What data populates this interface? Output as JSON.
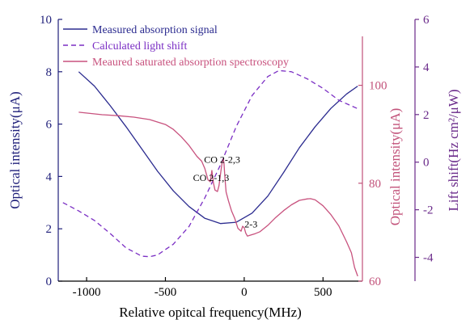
{
  "colors": {
    "axis_left": "#1f1f7a",
    "axis_right1": "#c2527a",
    "axis_right2": "#6a2a8a",
    "measured": "#2b2b8f",
    "calculated": "#7b2fc4",
    "spectroscopy": "#c8527e"
  },
  "chart_data": {
    "type": "line",
    "xlabel": "Relative opitcal frequency(MHz)",
    "xlim": [
      -1180,
      750
    ],
    "xticks": [
      -1000,
      -500,
      0,
      500
    ],
    "axes": {
      "left": {
        "label": "Optical intensity(μA)",
        "lim": [
          0,
          10
        ],
        "ticks": [
          0,
          2,
          4,
          6,
          8,
          10
        ]
      },
      "right1": {
        "label": "Optical intensity(μA)",
        "lim": [
          60,
          110
        ],
        "ticks": [
          60,
          80,
          100
        ]
      },
      "right2": {
        "label": "Lift shift(Hz cm²/μW)",
        "lim": [
          -5,
          6
        ],
        "ticks": [
          -4,
          -2,
          0,
          2,
          4,
          6
        ]
      }
    },
    "legend": {
      "position": "top-left"
    },
    "series": [
      {
        "name": "Measured absorption signal",
        "axis": "left",
        "style": "solid",
        "x": [
          -1050,
          -950,
          -850,
          -750,
          -650,
          -550,
          -450,
          -350,
          -250,
          -150,
          -50,
          50,
          150,
          250,
          350,
          450,
          550,
          650,
          720
        ],
        "y": [
          8.0,
          7.45,
          6.7,
          5.9,
          5.05,
          4.2,
          3.45,
          2.85,
          2.4,
          2.2,
          2.25,
          2.6,
          3.25,
          4.15,
          5.1,
          5.9,
          6.6,
          7.15,
          7.45
        ]
      },
      {
        "name": "Calculated light shift",
        "axis": "right2",
        "style": "dashed",
        "x": [
          -1150,
          -1050,
          -950,
          -850,
          -750,
          -650,
          -600,
          -550,
          -450,
          -350,
          -250,
          -150,
          -50,
          50,
          150,
          220,
          300,
          400,
          500,
          600,
          720
        ],
        "y": [
          -1.7,
          -2.05,
          -2.45,
          -3.0,
          -3.6,
          -3.95,
          -3.97,
          -3.9,
          -3.45,
          -2.7,
          -1.5,
          -0.1,
          1.5,
          2.8,
          3.6,
          3.85,
          3.8,
          3.5,
          3.1,
          2.6,
          2.25
        ]
      },
      {
        "name": "Meaured saturated absorption spectroscopy",
        "axis": "right1",
        "style": "solid",
        "x": [
          -1050,
          -900,
          -800,
          -700,
          -600,
          -500,
          -450,
          -400,
          -350,
          -300,
          -270,
          -250,
          -230,
          -215,
          -205,
          -195,
          -185,
          -170,
          -160,
          -150,
          -140,
          -133,
          -128,
          -122,
          -115,
          -100,
          -80,
          -60,
          -40,
          -20,
          -10,
          0,
          10,
          20,
          40,
          70,
          100,
          150,
          200,
          250,
          300,
          350,
          400,
          420,
          450,
          500,
          550,
          600,
          650,
          680,
          700,
          720
        ],
        "y": [
          94.5,
          94.0,
          93.8,
          93.5,
          93.0,
          92.0,
          91.0,
          89.5,
          87.7,
          85.5,
          84.5,
          83.0,
          80.7,
          80.3,
          82.6,
          80.0,
          78.6,
          78.3,
          79.5,
          82.0,
          84.3,
          85.0,
          84.0,
          81.0,
          78.2,
          76.4,
          74.3,
          72.8,
          70.8,
          70.2,
          71.2,
          70.9,
          69.8,
          69.2,
          69.4,
          69.7,
          70.1,
          71.4,
          73.0,
          74.4,
          75.6,
          76.5,
          76.8,
          76.85,
          76.6,
          75.4,
          73.6,
          71.3,
          68.0,
          65.8,
          62.8,
          61.0
        ]
      }
    ],
    "annotations": [
      {
        "text": "CO 2-1,3",
        "x": -210,
        "y": 80.5
      },
      {
        "text": "CO 2-2,3",
        "x": -140,
        "y": 84.2
      },
      {
        "text": "2-3",
        "x": 2,
        "y": 71.0
      }
    ]
  }
}
